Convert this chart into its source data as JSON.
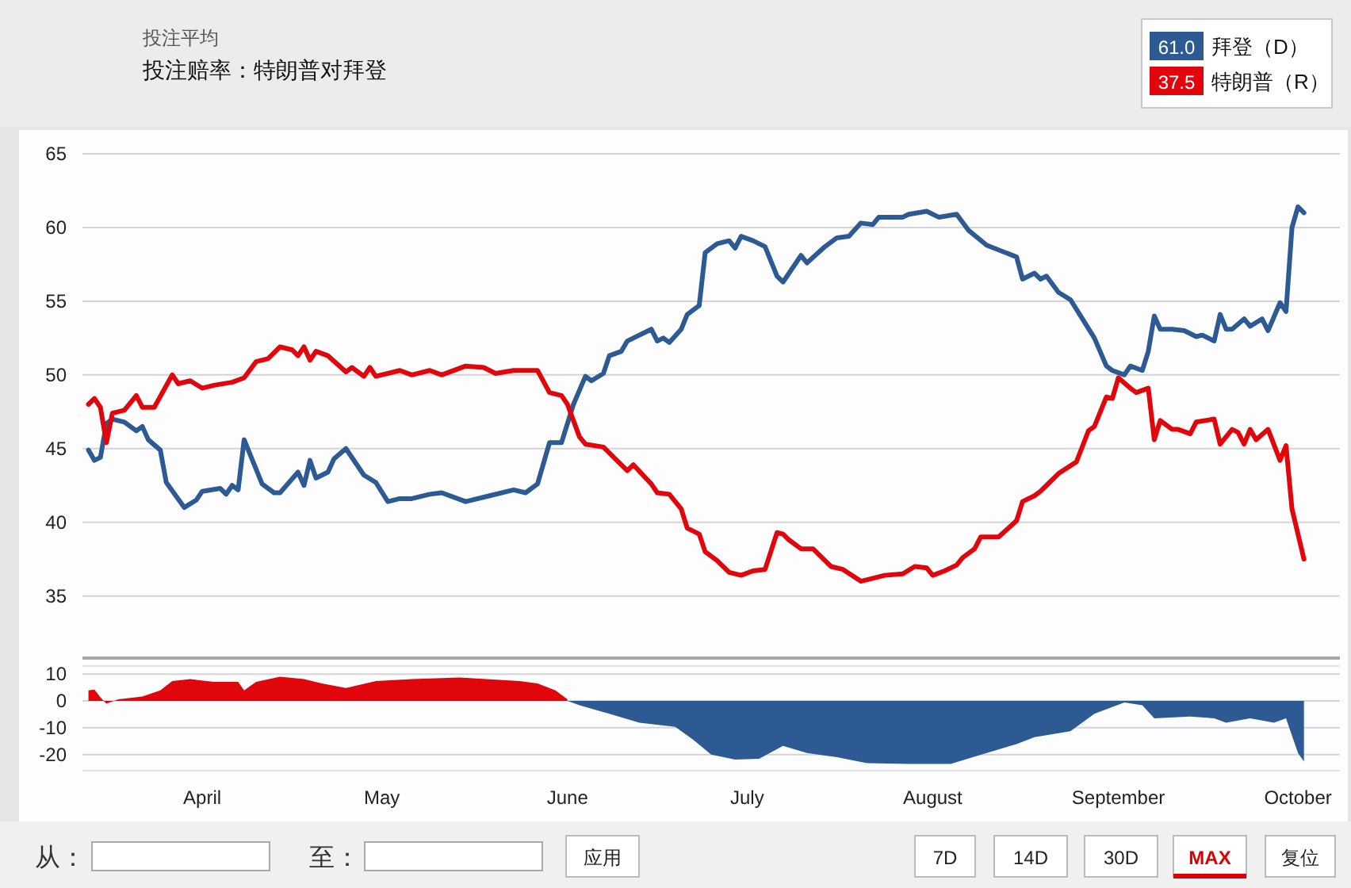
{
  "chart_data": [
    {
      "type": "line",
      "title": "投注赔率：特朗普对拜登",
      "subtitle": "投注平均",
      "xlim": [
        "--03-12",
        "--10-08"
      ],
      "ylim": [
        31,
        65
      ],
      "yticks": [
        35,
        40,
        45,
        50,
        55,
        60,
        65
      ],
      "tick_labels": "y",
      "grid": "y",
      "legend": "top right",
      "annotations": [
        "61.0",
        "37.5"
      ],
      "series": [
        {
          "name": "拜登（D）",
          "color": "#2e5a94",
          "x": [
            "--03-13",
            "--03-14",
            "--03-15",
            "--03-16",
            "--03-17",
            "--03-19",
            "--03-21",
            "--03-22",
            "--03-23",
            "--03-25",
            "--03-26",
            "--03-29",
            "--03-31",
            "--04-01",
            "--04-04",
            "--04-05",
            "--04-06",
            "--04-07",
            "--04-08",
            "--04-11",
            "--04-13",
            "--04-14",
            "--04-17",
            "--04-18",
            "--04-19",
            "--04-20",
            "--04-22",
            "--04-23",
            "--04-25",
            "--04-28",
            "--04-30",
            "--05-02",
            "--05-04",
            "--05-06",
            "--05-09",
            "--05-11",
            "--05-15",
            "--05-19",
            "--05-23",
            "--05-25",
            "--05-27",
            "--05-29",
            "--05-31",
            "--06-02",
            "--06-04",
            "--06-05",
            "--06-07",
            "--06-08",
            "--06-10",
            "--06-11",
            "--06-15",
            "--06-16",
            "--06-17",
            "--06-18",
            "--06-20",
            "--06-21",
            "--06-23",
            "--06-24",
            "--06-26",
            "--06-28",
            "--06-29",
            "--06-30",
            "--07-02",
            "--07-04",
            "--07-06",
            "--07-07",
            "--07-10",
            "--07-11",
            "--07-14",
            "--07-16",
            "--07-18",
            "--07-20",
            "--07-22",
            "--07-23",
            "--07-27",
            "--07-28",
            "--07-31",
            "--08-02",
            "--08-05",
            "--08-07",
            "--08-10",
            "--08-15",
            "--08-16",
            "--08-18",
            "--08-19",
            "--08-20",
            "--08-22",
            "--08-24",
            "--08-26",
            "--08-28",
            "--08-30",
            "--08-31",
            "--09-02",
            "--09-03",
            "--09-05",
            "--09-06",
            "--09-07",
            "--09-08",
            "--09-10",
            "--09-12",
            "--09-14",
            "--09-15",
            "--09-17",
            "--09-18",
            "--09-19",
            "--09-20",
            "--09-22",
            "--09-23",
            "--09-25",
            "--09-26",
            "--09-28",
            "--09-29",
            "--09-30",
            "--10-01",
            "--10-02"
          ],
          "values": [
            44.9,
            44.2,
            44.4,
            46.7,
            47.0,
            46.8,
            46.2,
            46.5,
            45.6,
            44.9,
            42.7,
            41.0,
            41.5,
            42.1,
            42.3,
            41.9,
            42.5,
            42.2,
            45.6,
            42.6,
            42.0,
            42.0,
            43.4,
            42.5,
            44.2,
            43.0,
            43.4,
            44.3,
            45.0,
            43.2,
            42.7,
            41.4,
            41.6,
            41.6,
            41.9,
            42.0,
            41.4,
            41.8,
            42.2,
            42.0,
            42.6,
            45.4,
            45.4,
            48.0,
            49.9,
            49.6,
            50.1,
            51.3,
            51.6,
            52.3,
            53.1,
            52.3,
            52.5,
            52.2,
            53.1,
            54.1,
            54.7,
            58.3,
            58.9,
            59.1,
            58.6,
            59.4,
            59.1,
            58.7,
            56.7,
            56.3,
            58.1,
            57.6,
            58.7,
            59.3,
            59.4,
            60.3,
            60.2,
            60.7,
            60.7,
            60.9,
            61.1,
            60.7,
            60.9,
            59.8,
            58.8,
            58.0,
            56.5,
            56.9,
            56.5,
            56.7,
            55.6,
            55.1,
            53.8,
            52.5,
            50.6,
            50.3,
            50.0,
            50.6,
            50.3,
            51.6,
            54.0,
            53.1,
            53.1,
            53.0,
            52.6,
            52.7,
            52.3,
            54.1,
            53.1,
            53.1,
            53.8,
            53.3,
            53.8,
            53.0,
            54.9,
            54.3,
            60.0,
            61.4,
            61.0
          ]
        },
        {
          "name": "特朗普（R）",
          "color": "#e0060c",
          "x": [
            "--03-13",
            "--03-14",
            "--03-15",
            "--03-16",
            "--03-17",
            "--03-19",
            "--03-21",
            "--03-22",
            "--03-24",
            "--03-27",
            "--03-28",
            "--03-30",
            "--04-01",
            "--04-03",
            "--04-06",
            "--04-08",
            "--04-10",
            "--04-12",
            "--04-14",
            "--04-16",
            "--04-17",
            "--04-18",
            "--04-19",
            "--04-20",
            "--04-22",
            "--04-25",
            "--04-26",
            "--04-28",
            "--04-29",
            "--04-30",
            "--05-04",
            "--05-06",
            "--05-09",
            "--05-11",
            "--05-15",
            "--05-18",
            "--05-20",
            "--05-23",
            "--05-27",
            "--05-29",
            "--05-31",
            "--06-01",
            "--06-03",
            "--06-04",
            "--06-07",
            "--06-09",
            "--06-11",
            "--06-12",
            "--06-15",
            "--06-16",
            "--06-18",
            "--06-20",
            "--06-21",
            "--06-23",
            "--06-24",
            "--06-26",
            "--06-28",
            "--06-30",
            "--07-02",
            "--07-04",
            "--07-06",
            "--07-07",
            "--07-08",
            "--07-10",
            "--07-12",
            "--07-15",
            "--07-17",
            "--07-20",
            "--07-22",
            "--07-24",
            "--07-27",
            "--07-29",
            "--07-31",
            "--08-01",
            "--08-03",
            "--08-05",
            "--08-06",
            "--08-08",
            "--08-09",
            "--08-12",
            "--08-15",
            "--08-16",
            "--08-18",
            "--08-19",
            "--08-20",
            "--08-22",
            "--08-25",
            "--08-27",
            "--08-28",
            "--08-30",
            "--08-31",
            "--09-01",
            "--09-03",
            "--09-04",
            "--09-06",
            "--09-07",
            "--09-08",
            "--09-10",
            "--09-11",
            "--09-13",
            "--09-14",
            "--09-17",
            "--09-18",
            "--09-20",
            "--09-21",
            "--09-22",
            "--09-23",
            "--09-24",
            "--09-26",
            "--09-28",
            "--09-29",
            "--09-30",
            "--10-02"
          ],
          "values": [
            48.0,
            48.4,
            47.8,
            45.4,
            47.4,
            47.6,
            48.6,
            47.8,
            47.8,
            50.0,
            49.4,
            49.6,
            49.1,
            49.3,
            49.5,
            49.8,
            50.9,
            51.1,
            51.9,
            51.7,
            51.3,
            51.9,
            51.0,
            51.6,
            51.3,
            50.2,
            50.5,
            49.9,
            50.5,
            49.9,
            50.3,
            50.0,
            50.3,
            50.0,
            50.6,
            50.5,
            50.1,
            50.3,
            50.3,
            48.8,
            48.6,
            48.0,
            45.8,
            45.3,
            45.1,
            44.3,
            43.5,
            43.9,
            42.6,
            42.0,
            41.9,
            40.9,
            39.6,
            39.2,
            38.0,
            37.4,
            36.6,
            36.4,
            36.7,
            36.8,
            39.3,
            39.2,
            38.8,
            38.2,
            38.2,
            37.0,
            36.8,
            36.0,
            36.2,
            36.4,
            36.5,
            37.0,
            36.9,
            36.4,
            36.7,
            37.1,
            37.6,
            38.2,
            39.0,
            39.0,
            40.1,
            41.4,
            41.8,
            42.1,
            42.5,
            43.3,
            44.1,
            46.2,
            46.5,
            48.5,
            48.4,
            49.8,
            49.1,
            48.8,
            49.1,
            45.6,
            46.9,
            46.3,
            46.3,
            46.0,
            46.8,
            47.0,
            45.3,
            46.3,
            46.1,
            45.3,
            46.3,
            45.6,
            46.3,
            44.2,
            45.2,
            40.9,
            37.5
          ]
        }
      ]
    },
    {
      "type": "area",
      "xlim": [
        "--03-12",
        "--10-08"
      ],
      "ylim": [
        -26,
        13
      ],
      "yticks": [
        -20,
        -10,
        0,
        10
      ],
      "xticks": [
        {
          "value": "--04-01",
          "label": "April"
        },
        {
          "value": "--05-01",
          "label": "May"
        },
        {
          "value": "--06-01",
          "label": "June"
        },
        {
          "value": "--07-01",
          "label": "July"
        },
        {
          "value": "--08-01",
          "label": "August"
        },
        {
          "value": "--09-01",
          "label": "September"
        },
        {
          "value": "--10-01",
          "label": "October"
        }
      ],
      "grid": "y",
      "annotations": [
        "从：",
        "至：",
        "应用",
        "7D",
        "14D",
        "30D",
        "MAX",
        "复位"
      ],
      "series": [
        {
          "color": "#e0060c",
          "x": [
            "--03-13",
            "--03-14",
            "--03-15",
            "--03-16",
            "--03-18",
            "--03-22",
            "--03-25",
            "--03-27",
            "--03-30",
            "--04-03",
            "--04-07",
            "--04-08",
            "--04-10",
            "--04-14",
            "--04-18",
            "--04-21",
            "--04-25",
            "--04-30",
            "--05-06",
            "--05-14",
            "--05-24",
            "--05-27",
            "--05-30",
            "--06-01"
          ],
          "values": [
            3.9,
            4.2,
            1.3,
            -1.0,
            0.6,
            1.6,
            3.9,
            7.4,
            8.1,
            7.1,
            7.1,
            3.9,
            7.1,
            9.0,
            8.1,
            6.5,
            4.8,
            7.4,
            8.1,
            8.7,
            7.4,
            6.5,
            3.9,
            0.6
          ]
        },
        {
          "color": "#2e5a94",
          "x": [
            "--06-01",
            "--06-03",
            "--06-08",
            "--06-13",
            "--06-19",
            "--06-22",
            "--06-25",
            "--06-29",
            "--07-03",
            "--07-07",
            "--07-11",
            "--07-16",
            "--07-21",
            "--07-28",
            "--08-04",
            "--08-10",
            "--08-15",
            "--08-18",
            "--08-24",
            "--08-28",
            "--09-02",
            "--09-05",
            "--09-07",
            "--09-13",
            "--09-17",
            "--09-19",
            "--09-23",
            "--09-27",
            "--09-29",
            "--10-01",
            "--10-02"
          ],
          "values": [
            0.0,
            -1.6,
            -4.8,
            -8.1,
            -9.7,
            -14.5,
            -20.0,
            -21.9,
            -21.6,
            -16.8,
            -19.4,
            -21.0,
            -23.2,
            -23.5,
            -23.5,
            -19.4,
            -16.1,
            -13.5,
            -11.3,
            -4.8,
            -0.6,
            -1.6,
            -6.5,
            -5.8,
            -6.5,
            -8.1,
            -6.5,
            -8.1,
            -6.5,
            -19.4,
            -22.6
          ]
        }
      ]
    }
  ]
}
